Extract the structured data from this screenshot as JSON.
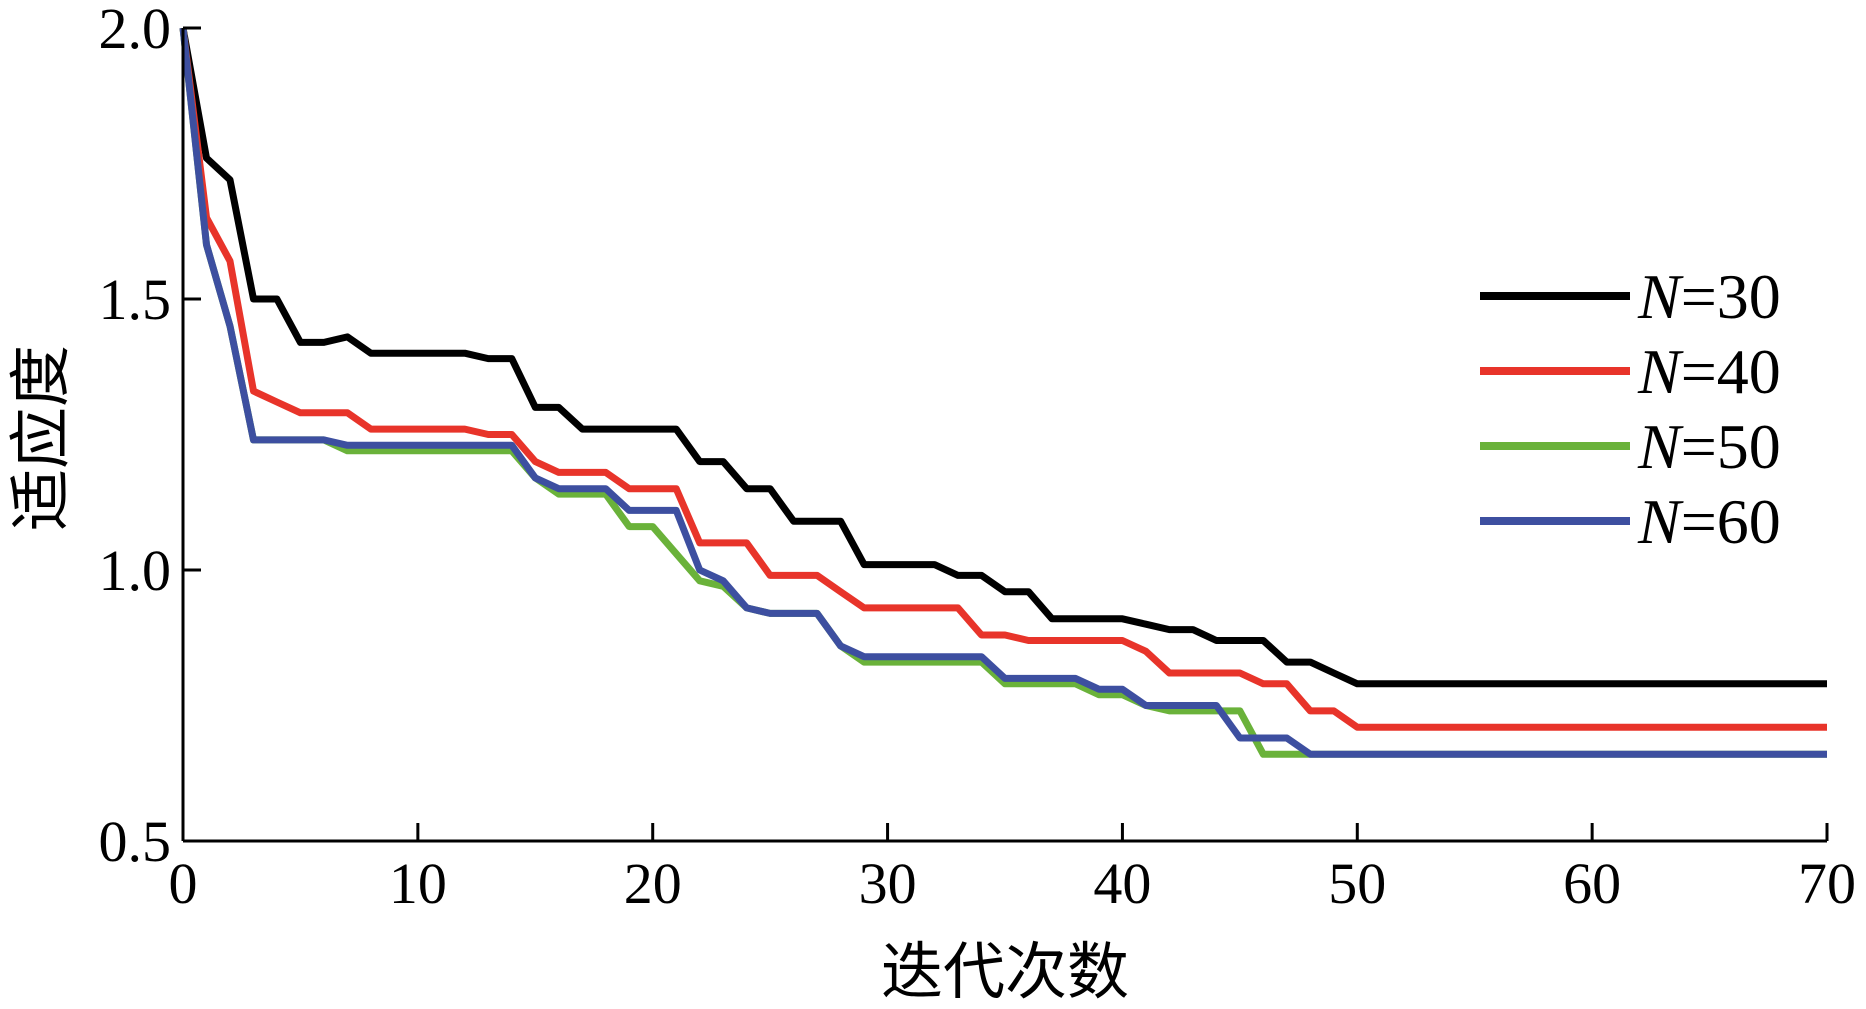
{
  "chart_data": {
    "type": "line",
    "xlabel": "迭代次数",
    "ylabel": "适应度",
    "xlim": [
      0,
      70
    ],
    "ylim": [
      0.5,
      2.0
    ],
    "xticks": [
      0,
      10,
      20,
      30,
      40,
      50,
      60,
      70
    ],
    "xtick_labels": [
      "0",
      "10",
      "20",
      "30",
      "40",
      "50",
      "60",
      "70"
    ],
    "yticks": [
      0.5,
      1.0,
      1.5,
      2.0
    ],
    "ytick_labels": [
      "0.5",
      "1.0",
      "1.5",
      "2.0"
    ],
    "grid": false,
    "legend_position": "right",
    "series": [
      {
        "name": "N=30",
        "name_italic": "N",
        "name_rest": "=30",
        "color": "#000000",
        "points": [
          [
            0,
            2.0
          ],
          [
            1,
            1.76
          ],
          [
            2,
            1.72
          ],
          [
            3,
            1.5
          ],
          [
            4,
            1.5
          ],
          [
            5,
            1.42
          ],
          [
            6,
            1.42
          ],
          [
            7,
            1.43
          ],
          [
            8,
            1.4
          ],
          [
            9,
            1.4
          ],
          [
            10,
            1.4
          ],
          [
            11,
            1.4
          ],
          [
            12,
            1.4
          ],
          [
            13,
            1.39
          ],
          [
            14,
            1.39
          ],
          [
            15,
            1.3
          ],
          [
            16,
            1.3
          ],
          [
            17,
            1.26
          ],
          [
            18,
            1.26
          ],
          [
            19,
            1.26
          ],
          [
            20,
            1.26
          ],
          [
            21,
            1.26
          ],
          [
            22,
            1.2
          ],
          [
            23,
            1.2
          ],
          [
            24,
            1.15
          ],
          [
            25,
            1.15
          ],
          [
            26,
            1.09
          ],
          [
            27,
            1.09
          ],
          [
            28,
            1.09
          ],
          [
            29,
            1.01
          ],
          [
            30,
            1.01
          ],
          [
            31,
            1.01
          ],
          [
            32,
            1.01
          ],
          [
            33,
            0.99
          ],
          [
            34,
            0.99
          ],
          [
            35,
            0.96
          ],
          [
            36,
            0.96
          ],
          [
            37,
            0.91
          ],
          [
            38,
            0.91
          ],
          [
            39,
            0.91
          ],
          [
            40,
            0.91
          ],
          [
            41,
            0.9
          ],
          [
            42,
            0.89
          ],
          [
            43,
            0.89
          ],
          [
            44,
            0.87
          ],
          [
            45,
            0.87
          ],
          [
            46,
            0.87
          ],
          [
            47,
            0.83
          ],
          [
            48,
            0.83
          ],
          [
            49,
            0.81
          ],
          [
            50,
            0.79
          ],
          [
            70,
            0.79
          ]
        ]
      },
      {
        "name": "N=40",
        "name_italic": "N",
        "name_rest": "=40",
        "color": "#e8342a",
        "points": [
          [
            0,
            2.0
          ],
          [
            1,
            1.65
          ],
          [
            2,
            1.57
          ],
          [
            3,
            1.33
          ],
          [
            4,
            1.31
          ],
          [
            5,
            1.29
          ],
          [
            6,
            1.29
          ],
          [
            7,
            1.29
          ],
          [
            8,
            1.26
          ],
          [
            9,
            1.26
          ],
          [
            10,
            1.26
          ],
          [
            11,
            1.26
          ],
          [
            12,
            1.26
          ],
          [
            13,
            1.25
          ],
          [
            14,
            1.25
          ],
          [
            15,
            1.2
          ],
          [
            16,
            1.18
          ],
          [
            17,
            1.18
          ],
          [
            18,
            1.18
          ],
          [
            19,
            1.15
          ],
          [
            20,
            1.15
          ],
          [
            21,
            1.15
          ],
          [
            22,
            1.05
          ],
          [
            23,
            1.05
          ],
          [
            24,
            1.05
          ],
          [
            25,
            0.99
          ],
          [
            26,
            0.99
          ],
          [
            27,
            0.99
          ],
          [
            28,
            0.96
          ],
          [
            29,
            0.93
          ],
          [
            30,
            0.93
          ],
          [
            31,
            0.93
          ],
          [
            32,
            0.93
          ],
          [
            33,
            0.93
          ],
          [
            34,
            0.88
          ],
          [
            35,
            0.88
          ],
          [
            36,
            0.87
          ],
          [
            37,
            0.87
          ],
          [
            38,
            0.87
          ],
          [
            39,
            0.87
          ],
          [
            40,
            0.87
          ],
          [
            41,
            0.85
          ],
          [
            42,
            0.81
          ],
          [
            43,
            0.81
          ],
          [
            44,
            0.81
          ],
          [
            45,
            0.81
          ],
          [
            46,
            0.79
          ],
          [
            47,
            0.79
          ],
          [
            48,
            0.74
          ],
          [
            49,
            0.74
          ],
          [
            50,
            0.71
          ],
          [
            70,
            0.71
          ]
        ]
      },
      {
        "name": "N=50",
        "name_italic": "N",
        "name_rest": "=50",
        "color": "#6ab23a",
        "points": [
          [
            0,
            2.0
          ],
          [
            1,
            1.6
          ],
          [
            2,
            1.45
          ],
          [
            3,
            1.24
          ],
          [
            4,
            1.24
          ],
          [
            5,
            1.24
          ],
          [
            6,
            1.24
          ],
          [
            7,
            1.22
          ],
          [
            8,
            1.22
          ],
          [
            9,
            1.22
          ],
          [
            10,
            1.22
          ],
          [
            11,
            1.22
          ],
          [
            12,
            1.22
          ],
          [
            13,
            1.22
          ],
          [
            14,
            1.22
          ],
          [
            15,
            1.17
          ],
          [
            16,
            1.14
          ],
          [
            17,
            1.14
          ],
          [
            18,
            1.14
          ],
          [
            19,
            1.08
          ],
          [
            20,
            1.08
          ],
          [
            21,
            1.03
          ],
          [
            22,
            0.98
          ],
          [
            23,
            0.97
          ],
          [
            24,
            0.93
          ],
          [
            25,
            0.92
          ],
          [
            26,
            0.92
          ],
          [
            27,
            0.92
          ],
          [
            28,
            0.86
          ],
          [
            29,
            0.83
          ],
          [
            30,
            0.83
          ],
          [
            31,
            0.83
          ],
          [
            32,
            0.83
          ],
          [
            33,
            0.83
          ],
          [
            34,
            0.83
          ],
          [
            35,
            0.79
          ],
          [
            36,
            0.79
          ],
          [
            37,
            0.79
          ],
          [
            38,
            0.79
          ],
          [
            39,
            0.77
          ],
          [
            40,
            0.77
          ],
          [
            41,
            0.75
          ],
          [
            42,
            0.74
          ],
          [
            43,
            0.74
          ],
          [
            44,
            0.74
          ],
          [
            45,
            0.74
          ],
          [
            46,
            0.66
          ],
          [
            47,
            0.66
          ],
          [
            48,
            0.66
          ],
          [
            49,
            0.66
          ],
          [
            50,
            0.66
          ],
          [
            70,
            0.66
          ]
        ]
      },
      {
        "name": "N=60",
        "name_italic": "N",
        "name_rest": "=60",
        "color": "#3d4fa0",
        "points": [
          [
            0,
            2.0
          ],
          [
            1,
            1.6
          ],
          [
            2,
            1.45
          ],
          [
            3,
            1.24
          ],
          [
            4,
            1.24
          ],
          [
            5,
            1.24
          ],
          [
            6,
            1.24
          ],
          [
            7,
            1.23
          ],
          [
            8,
            1.23
          ],
          [
            9,
            1.23
          ],
          [
            10,
            1.23
          ],
          [
            11,
            1.23
          ],
          [
            12,
            1.23
          ],
          [
            13,
            1.23
          ],
          [
            14,
            1.23
          ],
          [
            15,
            1.17
          ],
          [
            16,
            1.15
          ],
          [
            17,
            1.15
          ],
          [
            18,
            1.15
          ],
          [
            19,
            1.11
          ],
          [
            20,
            1.11
          ],
          [
            21,
            1.11
          ],
          [
            22,
            1.0
          ],
          [
            23,
            0.98
          ],
          [
            24,
            0.93
          ],
          [
            25,
            0.92
          ],
          [
            26,
            0.92
          ],
          [
            27,
            0.92
          ],
          [
            28,
            0.86
          ],
          [
            29,
            0.84
          ],
          [
            30,
            0.84
          ],
          [
            31,
            0.84
          ],
          [
            32,
            0.84
          ],
          [
            33,
            0.84
          ],
          [
            34,
            0.84
          ],
          [
            35,
            0.8
          ],
          [
            36,
            0.8
          ],
          [
            37,
            0.8
          ],
          [
            38,
            0.8
          ],
          [
            39,
            0.78
          ],
          [
            40,
            0.78
          ],
          [
            41,
            0.75
          ],
          [
            42,
            0.75
          ],
          [
            43,
            0.75
          ],
          [
            44,
            0.75
          ],
          [
            45,
            0.69
          ],
          [
            46,
            0.69
          ],
          [
            47,
            0.69
          ],
          [
            48,
            0.66
          ],
          [
            49,
            0.66
          ],
          [
            50,
            0.66
          ],
          [
            70,
            0.66
          ]
        ]
      }
    ]
  }
}
